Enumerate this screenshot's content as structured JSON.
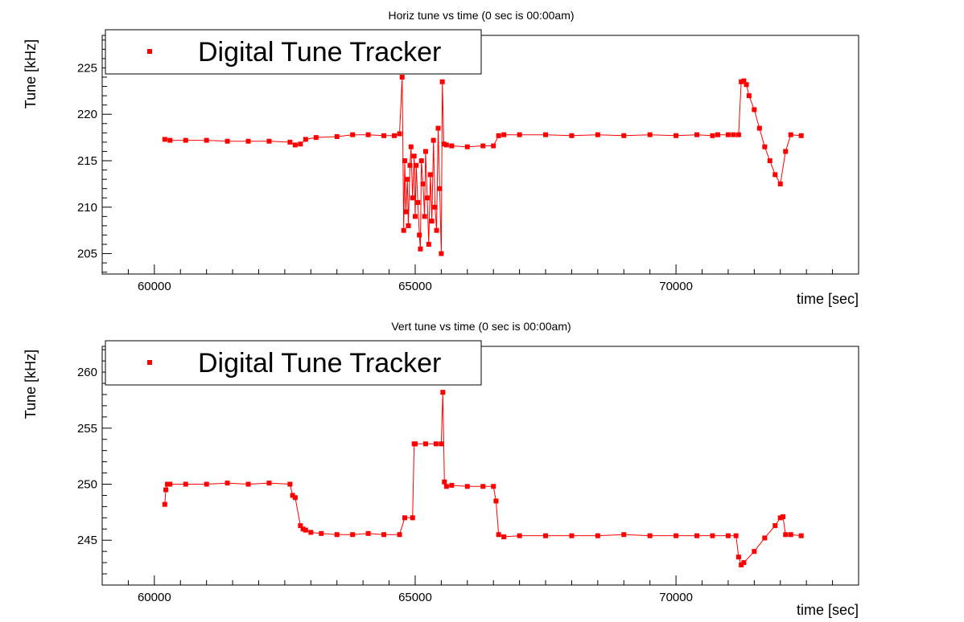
{
  "colors": {
    "series": "#ff0000",
    "axis": "#000000",
    "background": "#ffffff"
  },
  "chart_data": [
    {
      "type": "scatter",
      "title": "Horiz tune vs time (0 sec is 00:00am)",
      "xlabel": "time [sec]",
      "ylabel": "Tune [kHz]",
      "xlim": [
        59000,
        73500
      ],
      "ylim": [
        202.8,
        228.5
      ],
      "xticks": [
        60000,
        65000,
        70000
      ],
      "yticks": [
        205,
        210,
        215,
        220,
        225
      ],
      "legend": {
        "position": "top-left",
        "entries": [
          "Digital Tune Tracker"
        ]
      },
      "grid": false,
      "series": [
        {
          "name": "Digital Tune Tracker",
          "x": [
            60200,
            60300,
            60600,
            61000,
            61400,
            61800,
            62200,
            62600,
            62700,
            62800,
            62900,
            63100,
            63500,
            63800,
            64100,
            64400,
            64600,
            64700,
            64750,
            64780,
            64800,
            64820,
            64850,
            64870,
            64900,
            64920,
            64950,
            64980,
            65000,
            65020,
            65050,
            65080,
            65100,
            65120,
            65150,
            65180,
            65200,
            65230,
            65260,
            65290,
            65320,
            65350,
            65380,
            65410,
            65440,
            65470,
            65500,
            65520,
            65550,
            65600,
            65700,
            66000,
            66300,
            66500,
            66600,
            66700,
            67000,
            67500,
            68000,
            68500,
            69000,
            69500,
            70000,
            70400,
            70700,
            70800,
            71000,
            71100,
            71200,
            71250,
            71300,
            71350,
            71400,
            71500,
            71600,
            71700,
            71800,
            71900,
            72000,
            72100,
            72200,
            72400
          ],
          "y": [
            217.3,
            217.2,
            217.2,
            217.2,
            217.1,
            217.1,
            217.1,
            217.0,
            216.7,
            216.8,
            217.3,
            217.5,
            217.6,
            217.8,
            217.8,
            217.7,
            217.7,
            217.9,
            224.0,
            207.5,
            215.0,
            209.5,
            213.0,
            208.0,
            214.5,
            216.5,
            211.0,
            215.5,
            209.0,
            214.5,
            210.5,
            207.0,
            205.5,
            215.0,
            212.5,
            209.0,
            216.0,
            211.0,
            206.0,
            213.5,
            208.5,
            217.2,
            210.0,
            207.5,
            218.5,
            212.0,
            205.0,
            223.5,
            216.8,
            216.7,
            216.6,
            216.5,
            216.6,
            216.6,
            217.7,
            217.8,
            217.8,
            217.8,
            217.7,
            217.8,
            217.7,
            217.8,
            217.7,
            217.8,
            217.7,
            217.8,
            217.8,
            217.8,
            217.8,
            223.5,
            223.6,
            223.2,
            222.0,
            220.5,
            218.5,
            216.5,
            215.0,
            213.5,
            212.5,
            216.0,
            217.8,
            217.7
          ]
        }
      ]
    },
    {
      "type": "scatter",
      "title": "Vert tune vs time (0 sec is 00:00am)",
      "xlabel": "time [sec]",
      "ylabel": "Tune [kHz]",
      "xlim": [
        59000,
        73500
      ],
      "ylim": [
        241.0,
        262.3
      ],
      "xticks": [
        60000,
        65000,
        70000
      ],
      "yticks": [
        245,
        250,
        255,
        260
      ],
      "legend": {
        "position": "top-left",
        "entries": [
          "Digital Tune Tracker"
        ]
      },
      "grid": false,
      "series": [
        {
          "name": "Digital Tune Tracker",
          "x": [
            60200,
            60220,
            60250,
            60300,
            60600,
            61000,
            61400,
            61800,
            62200,
            62600,
            62650,
            62700,
            62800,
            62850,
            62900,
            63000,
            63200,
            63500,
            63800,
            64100,
            64400,
            64700,
            64800,
            64950,
            64980,
            65000,
            65200,
            65400,
            65500,
            65530,
            65560,
            65600,
            65700,
            66000,
            66300,
            66500,
            66550,
            66600,
            66700,
            67000,
            67500,
            68000,
            68500,
            69000,
            69500,
            70000,
            70400,
            70700,
            71000,
            71150,
            71200,
            71250,
            71300,
            71500,
            71700,
            71900,
            72000,
            72050,
            72100,
            72200,
            72400
          ],
          "y": [
            248.2,
            249.5,
            250.0,
            250.0,
            250.0,
            250.0,
            250.1,
            250.0,
            250.1,
            250.0,
            249.0,
            248.8,
            246.3,
            246.0,
            245.9,
            245.7,
            245.6,
            245.5,
            245.5,
            245.6,
            245.5,
            245.5,
            247.0,
            247.0,
            253.6,
            253.6,
            253.6,
            253.6,
            253.6,
            258.2,
            250.2,
            249.8,
            249.9,
            249.8,
            249.8,
            249.8,
            248.5,
            245.5,
            245.3,
            245.4,
            245.4,
            245.4,
            245.4,
            245.5,
            245.4,
            245.4,
            245.4,
            245.4,
            245.4,
            245.4,
            243.5,
            242.8,
            243.0,
            244.0,
            245.2,
            246.3,
            247.0,
            247.1,
            245.5,
            245.5,
            245.4
          ]
        }
      ]
    }
  ]
}
